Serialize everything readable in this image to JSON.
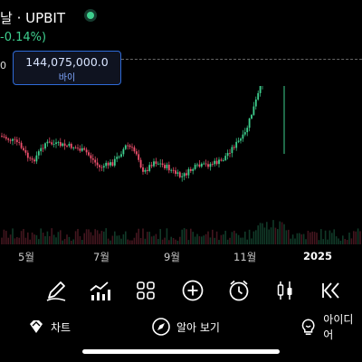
{
  "header": {
    "title": "날 · UPBIT",
    "change": "-0.14%)",
    "side_value": "0"
  },
  "price_tag": {
    "value": "144,075,000.0",
    "sub": "바이"
  },
  "x_axis": [
    "5월",
    "7월",
    "9월",
    "11월",
    "2025"
  ],
  "toolbar": {
    "items": [
      "pen-icon",
      "indicators-icon",
      "layouts-icon",
      "add-icon",
      "alert-icon",
      "candles-icon",
      "replay-icon"
    ]
  },
  "bottom_nav": {
    "items": [
      {
        "label": "차트",
        "icon": "chart-gem-icon"
      },
      {
        "label": "알아 보기",
        "icon": "explore-icon"
      },
      {
        "label": "아이디어",
        "icon": "ideas-icon"
      }
    ]
  },
  "colors": {
    "up": "#3ecf8e",
    "down": "#f0506e",
    "accent": "#2f6bd8",
    "pattern": "#f5e64a"
  }
}
